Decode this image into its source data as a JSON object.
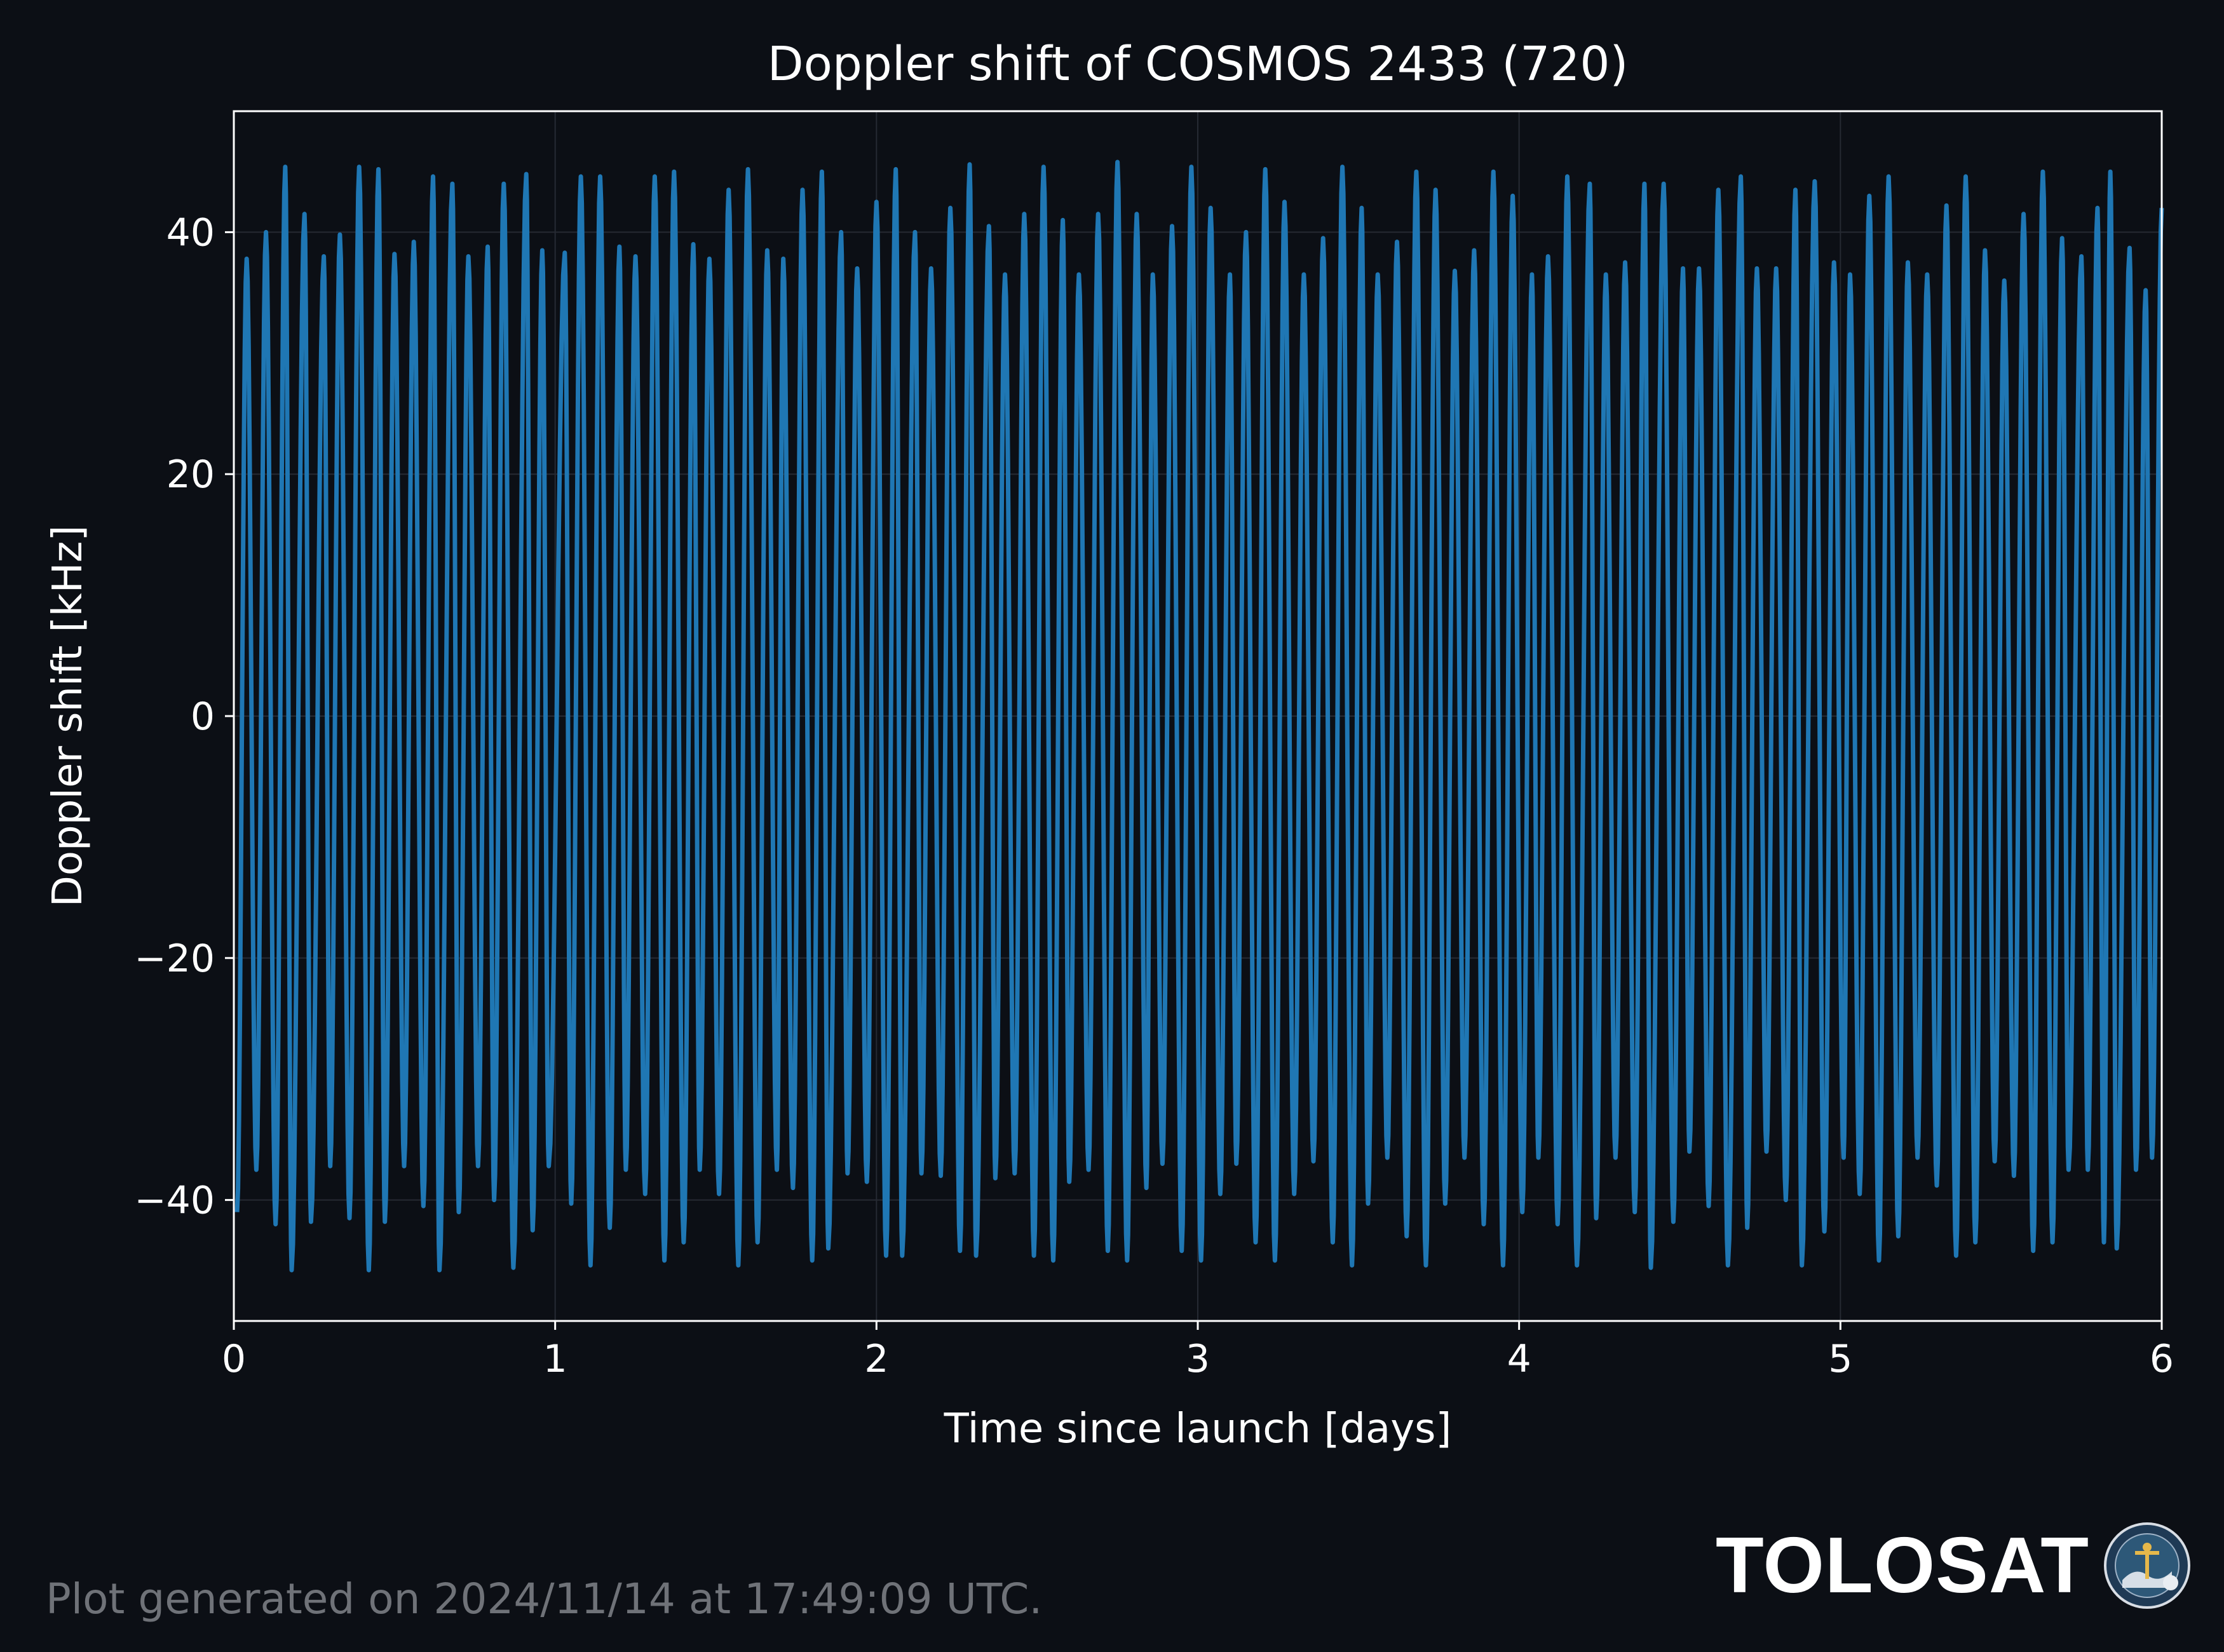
{
  "chart_data": {
    "type": "line",
    "title": "Doppler shift of COSMOS 2433 (720)",
    "xlabel": "Time since launch [days]",
    "ylabel": "Doppler shift [kHz]",
    "xlim": [
      0,
      6
    ],
    "ylim": [
      -50,
      50
    ],
    "xticks": [
      0,
      1,
      2,
      3,
      4,
      5,
      6
    ],
    "xtick_labels": [
      "0",
      "1",
      "2",
      "3",
      "4",
      "5",
      "6"
    ],
    "yticks": [
      -40,
      -20,
      0,
      20,
      40
    ],
    "ytick_labels": [
      "−40",
      "−20",
      "0",
      "20",
      "40"
    ],
    "grid": true,
    "series": [
      {
        "color": "#1f77b4",
        "peaks": [
          [
            0.01,
            -41.0
          ],
          [
            0.04,
            37.8
          ],
          [
            0.07,
            -37.5
          ],
          [
            0.1,
            40.0
          ],
          [
            0.13,
            -42.0
          ],
          [
            0.16,
            45.4
          ],
          [
            0.18,
            -45.8
          ],
          [
            0.22,
            41.5
          ],
          [
            0.24,
            -41.8
          ],
          [
            0.28,
            38.0
          ],
          [
            0.3,
            -37.2
          ],
          [
            0.33,
            39.8
          ],
          [
            0.36,
            -41.5
          ],
          [
            0.39,
            45.4
          ],
          [
            0.42,
            -45.8
          ],
          [
            0.45,
            45.2
          ],
          [
            0.47,
            -41.8
          ],
          [
            0.5,
            38.2
          ],
          [
            0.53,
            -37.2
          ],
          [
            0.56,
            39.2
          ],
          [
            0.59,
            -40.5
          ],
          [
            0.62,
            44.6
          ],
          [
            0.64,
            -45.8
          ],
          [
            0.68,
            44.0
          ],
          [
            0.7,
            -41.0
          ],
          [
            0.73,
            38.0
          ],
          [
            0.76,
            -37.2
          ],
          [
            0.79,
            38.8
          ],
          [
            0.81,
            -40.0
          ],
          [
            0.84,
            44.0
          ],
          [
            0.87,
            -45.6
          ],
          [
            0.91,
            44.8
          ],
          [
            0.93,
            -42.5
          ],
          [
            0.96,
            38.5
          ],
          [
            0.98,
            -37.2
          ],
          [
            1.03,
            38.3
          ],
          [
            1.05,
            -40.3
          ],
          [
            1.08,
            44.6
          ],
          [
            1.11,
            -45.4
          ],
          [
            1.14,
            44.6
          ],
          [
            1.17,
            -42.3
          ],
          [
            1.2,
            38.8
          ],
          [
            1.22,
            -37.5
          ],
          [
            1.25,
            38.0
          ],
          [
            1.28,
            -39.5
          ],
          [
            1.31,
            44.6
          ],
          [
            1.34,
            -45.0
          ],
          [
            1.37,
            45.0
          ],
          [
            1.4,
            -43.5
          ],
          [
            1.43,
            39.0
          ],
          [
            1.45,
            -37.5
          ],
          [
            1.48,
            37.8
          ],
          [
            1.51,
            -39.5
          ],
          [
            1.54,
            43.5
          ],
          [
            1.57,
            -45.4
          ],
          [
            1.6,
            45.2
          ],
          [
            1.63,
            -43.5
          ],
          [
            1.66,
            38.5
          ],
          [
            1.69,
            -37.5
          ],
          [
            1.71,
            37.8
          ],
          [
            1.74,
            -39.0
          ],
          [
            1.77,
            43.5
          ],
          [
            1.8,
            -45.0
          ],
          [
            1.83,
            45.0
          ],
          [
            1.85,
            -44.0
          ],
          [
            1.89,
            40.0
          ],
          [
            1.91,
            -37.8
          ],
          [
            1.94,
            37.0
          ],
          [
            1.97,
            -38.5
          ],
          [
            2.0,
            42.5
          ],
          [
            2.03,
            -44.6
          ],
          [
            2.06,
            45.2
          ],
          [
            2.08,
            -44.6
          ],
          [
            2.12,
            40.0
          ],
          [
            2.14,
            -37.8
          ],
          [
            2.17,
            37.0
          ],
          [
            2.2,
            -38.0
          ],
          [
            2.23,
            42.0
          ],
          [
            2.26,
            -44.2
          ],
          [
            2.29,
            45.6
          ],
          [
            2.31,
            -44.6
          ],
          [
            2.35,
            40.5
          ],
          [
            2.37,
            -38.2
          ],
          [
            2.4,
            36.5
          ],
          [
            2.43,
            -37.8
          ],
          [
            2.46,
            41.5
          ],
          [
            2.49,
            -44.6
          ],
          [
            2.52,
            45.4
          ],
          [
            2.55,
            -45.0
          ],
          [
            2.58,
            41.0
          ],
          [
            2.6,
            -38.5
          ],
          [
            2.63,
            36.5
          ],
          [
            2.66,
            -37.5
          ],
          [
            2.69,
            41.5
          ],
          [
            2.72,
            -44.2
          ],
          [
            2.75,
            45.8
          ],
          [
            2.78,
            -45.0
          ],
          [
            2.81,
            41.5
          ],
          [
            2.84,
            -39.0
          ],
          [
            2.86,
            36.5
          ],
          [
            2.89,
            -37.0
          ],
          [
            2.92,
            40.5
          ],
          [
            2.95,
            -44.2
          ],
          [
            2.98,
            45.4
          ],
          [
            3.01,
            -45.0
          ],
          [
            3.04,
            42.0
          ],
          [
            3.07,
            -39.5
          ],
          [
            3.1,
            36.5
          ],
          [
            3.12,
            -37.0
          ],
          [
            3.15,
            40.0
          ],
          [
            3.18,
            -43.5
          ],
          [
            3.21,
            45.2
          ],
          [
            3.24,
            -45.0
          ],
          [
            3.27,
            42.5
          ],
          [
            3.3,
            -39.5
          ],
          [
            3.33,
            36.5
          ],
          [
            3.36,
            -36.8
          ],
          [
            3.39,
            39.5
          ],
          [
            3.42,
            -43.5
          ],
          [
            3.45,
            45.4
          ],
          [
            3.48,
            -45.4
          ],
          [
            3.51,
            42.0
          ],
          [
            3.53,
            -40.3
          ],
          [
            3.56,
            36.5
          ],
          [
            3.59,
            -36.5
          ],
          [
            3.62,
            39.2
          ],
          [
            3.65,
            -43.0
          ],
          [
            3.68,
            45.0
          ],
          [
            3.71,
            -45.4
          ],
          [
            3.74,
            43.5
          ],
          [
            3.77,
            -40.3
          ],
          [
            3.8,
            36.8
          ],
          [
            3.83,
            -36.5
          ],
          [
            3.86,
            38.5
          ],
          [
            3.89,
            -42.0
          ],
          [
            3.92,
            45.0
          ],
          [
            3.95,
            -45.4
          ],
          [
            3.98,
            43.0
          ],
          [
            4.01,
            -41.0
          ],
          [
            4.04,
            36.5
          ],
          [
            4.06,
            -36.5
          ],
          [
            4.09,
            38.0
          ],
          [
            4.12,
            -42.0
          ],
          [
            4.15,
            44.6
          ],
          [
            4.18,
            -45.4
          ],
          [
            4.22,
            44.0
          ],
          [
            4.24,
            -41.5
          ],
          [
            4.27,
            36.5
          ],
          [
            4.3,
            -36.5
          ],
          [
            4.33,
            37.5
          ],
          [
            4.36,
            -41.0
          ],
          [
            4.39,
            44.0
          ],
          [
            4.41,
            -45.6
          ],
          [
            4.45,
            44.0
          ],
          [
            4.48,
            -41.8
          ],
          [
            4.51,
            37.0
          ],
          [
            4.53,
            -36.0
          ],
          [
            4.56,
            37.0
          ],
          [
            4.59,
            -40.5
          ],
          [
            4.62,
            43.5
          ],
          [
            4.65,
            -45.4
          ],
          [
            4.69,
            44.6
          ],
          [
            4.71,
            -42.3
          ],
          [
            4.74,
            37.0
          ],
          [
            4.77,
            -36.0
          ],
          [
            4.8,
            37.0
          ],
          [
            4.83,
            -40.0
          ],
          [
            4.86,
            43.5
          ],
          [
            4.88,
            -45.4
          ],
          [
            4.92,
            44.2
          ],
          [
            4.95,
            -42.6
          ],
          [
            4.98,
            37.5
          ],
          [
            5.01,
            -36.5
          ],
          [
            5.03,
            36.5
          ],
          [
            5.06,
            -39.5
          ],
          [
            5.09,
            43.0
          ],
          [
            5.12,
            -45.0
          ],
          [
            5.15,
            44.6
          ],
          [
            5.18,
            -43.0
          ],
          [
            5.21,
            37.5
          ],
          [
            5.24,
            -36.5
          ],
          [
            5.27,
            36.5
          ],
          [
            5.3,
            -38.8
          ],
          [
            5.33,
            42.2
          ],
          [
            5.36,
            -44.6
          ],
          [
            5.39,
            44.6
          ],
          [
            5.42,
            -43.5
          ],
          [
            5.45,
            38.5
          ],
          [
            5.48,
            -36.8
          ],
          [
            5.51,
            36.0
          ],
          [
            5.54,
            -38.0
          ],
          [
            5.57,
            41.5
          ],
          [
            5.6,
            -44.2
          ],
          [
            5.63,
            45.0
          ],
          [
            5.66,
            -43.5
          ],
          [
            5.69,
            39.5
          ],
          [
            5.71,
            -37.5
          ],
          [
            5.75,
            38.0
          ],
          [
            5.77,
            -37.5
          ],
          [
            5.8,
            42.0
          ],
          [
            5.82,
            -43.5
          ],
          [
            5.84,
            45.0
          ],
          [
            5.86,
            -44.0
          ],
          [
            5.9,
            38.7
          ],
          [
            5.92,
            -37.5
          ],
          [
            5.95,
            35.2
          ],
          [
            5.97,
            -36.5
          ],
          [
            6.0,
            42.0
          ]
        ]
      }
    ]
  },
  "footer": {
    "generated_text": "Plot generated on 2024/11/14 at 17:49:09 UTC."
  },
  "brand": {
    "name": "TOLOSAT"
  }
}
